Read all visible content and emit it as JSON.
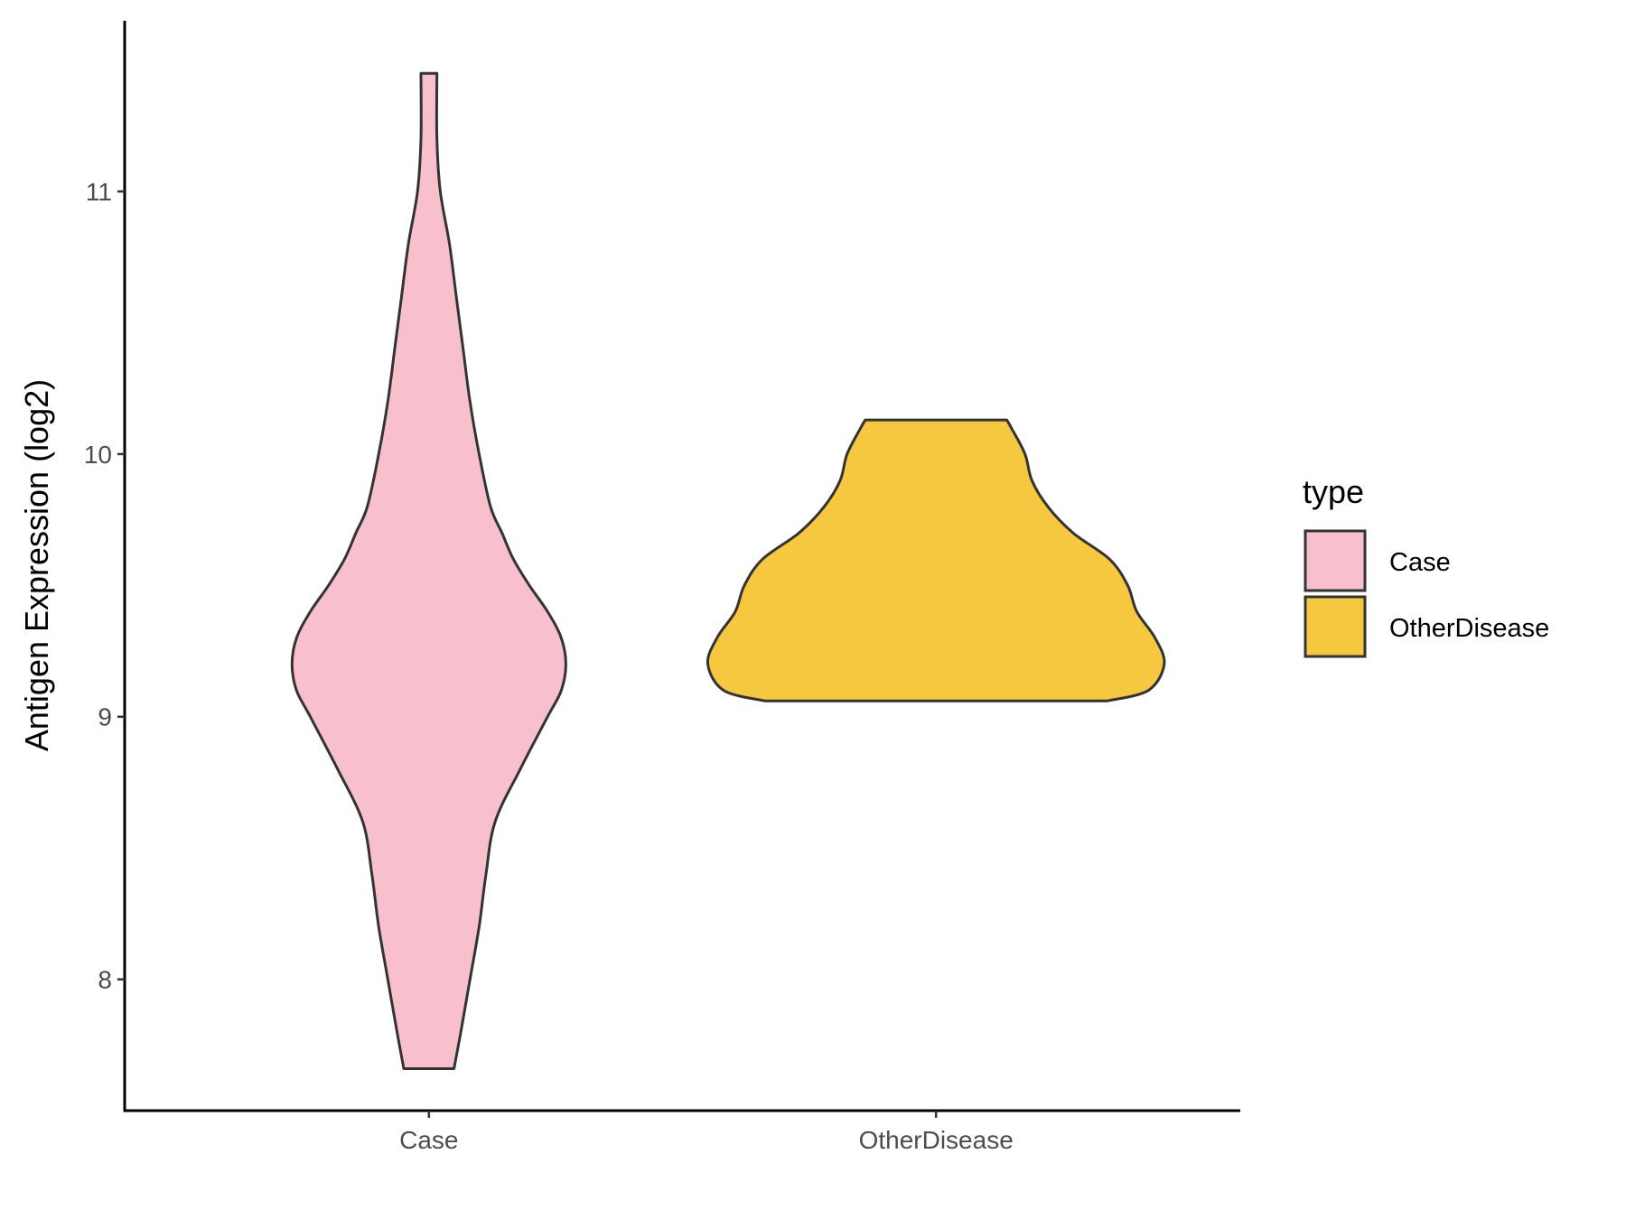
{
  "chart_data": {
    "type": "violin",
    "title": "",
    "xlabel": "",
    "ylabel": "Antigen Expression (log2)",
    "ylim": [
      7.5,
      11.65
    ],
    "yticks": [
      "8",
      "9",
      "10",
      "11"
    ],
    "categories": [
      "Case",
      "OtherDisease"
    ],
    "legend": {
      "title": "type",
      "position": "right",
      "entries": [
        "Case",
        "OtherDisease"
      ]
    },
    "grid": false,
    "series": [
      {
        "name": "Case",
        "color": "#F7C0CC",
        "y_min": 7.66,
        "y_max": 11.45,
        "density_profile": [
          [
            7.66,
            0.11
          ],
          [
            7.8,
            0.14
          ],
          [
            8.0,
            0.18
          ],
          [
            8.2,
            0.22
          ],
          [
            8.4,
            0.25
          ],
          [
            8.6,
            0.29
          ],
          [
            8.8,
            0.4
          ],
          [
            9.0,
            0.52
          ],
          [
            9.1,
            0.58
          ],
          [
            9.2,
            0.6
          ],
          [
            9.3,
            0.58
          ],
          [
            9.4,
            0.52
          ],
          [
            9.5,
            0.44
          ],
          [
            9.6,
            0.37
          ],
          [
            9.7,
            0.32
          ],
          [
            9.8,
            0.27
          ],
          [
            10.0,
            0.22
          ],
          [
            10.2,
            0.18
          ],
          [
            10.4,
            0.15
          ],
          [
            10.6,
            0.12
          ],
          [
            10.8,
            0.09
          ],
          [
            11.0,
            0.05
          ],
          [
            11.2,
            0.035
          ],
          [
            11.45,
            0.035
          ]
        ]
      },
      {
        "name": "OtherDisease",
        "color": "#F5C83F",
        "y_min": 9.06,
        "y_max": 10.13,
        "density_profile": [
          [
            9.06,
            0.75
          ],
          [
            9.1,
            0.93
          ],
          [
            9.2,
            1.0
          ],
          [
            9.3,
            0.96
          ],
          [
            9.4,
            0.88
          ],
          [
            9.5,
            0.84
          ],
          [
            9.6,
            0.76
          ],
          [
            9.7,
            0.6
          ],
          [
            9.8,
            0.49
          ],
          [
            9.9,
            0.42
          ],
          [
            10.0,
            0.39
          ],
          [
            10.1,
            0.33
          ],
          [
            10.13,
            0.31
          ]
        ]
      }
    ]
  }
}
